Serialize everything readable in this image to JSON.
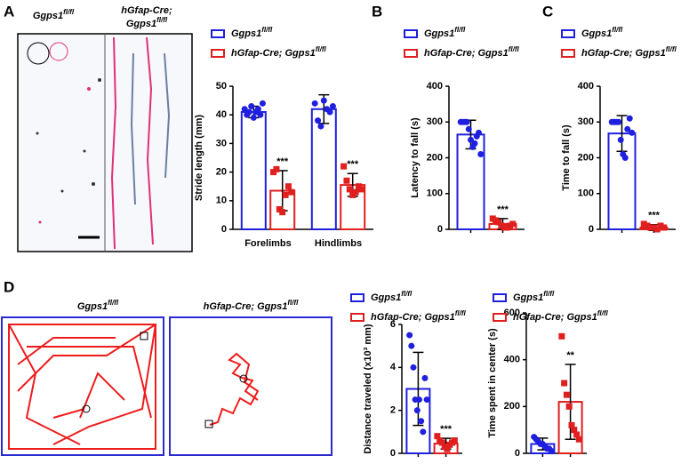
{
  "panel_labels": [
    "A",
    "B",
    "C",
    "D"
  ],
  "images": {
    "footprint": {
      "labels": [
        {
          "line1": "Ggps1",
          "sup": "fl/fl"
        },
        {
          "line0": "hGfap-Cre;",
          "line1": "Ggps1",
          "sup": "fl/fl"
        }
      ]
    },
    "open_field": {
      "labels": [
        {
          "text": "Ggps1",
          "sup": "fl/fl"
        },
        {
          "text": "hGfap-Cre; Ggps1",
          "sup": "fl/fl"
        }
      ]
    }
  },
  "chart_data": [
    {
      "type": "bar",
      "y_label": "Stride length (mm)",
      "categories": [
        "Forelimbs",
        "Hindlimbs"
      ],
      "ylim": [
        0,
        50
      ],
      "yticks": [
        0,
        10,
        20,
        30,
        40,
        50
      ],
      "series": [
        {
          "name": "Ggps1",
          "name_sup": "fl/fl",
          "color": "#1f1fe0",
          "marker": "circle",
          "values": [
            41,
            42
          ],
          "errors": [
            2,
            5
          ],
          "points": [
            [
              42,
              40,
              41,
              43,
              39,
              41,
              42,
              40,
              44
            ],
            [
              44,
              38,
              36,
              45,
              42,
              41,
              43
            ]
          ]
        },
        {
          "name": "hGfap-Cre; Ggps1",
          "name_sup": "fl/fl",
          "color": "#e01f1f",
          "marker": "square",
          "values": [
            13.5,
            15.5
          ],
          "errors": [
            7,
            4
          ],
          "points": [
            [
              20,
              21,
              7,
              6,
              12,
              15,
              13
            ],
            [
              22,
              17,
              14,
              12,
              13,
              15,
              14
            ]
          ],
          "significance": [
            "***",
            "***"
          ]
        }
      ]
    },
    {
      "type": "bar",
      "y_label": "Latency to fall (s)",
      "categories": [
        null
      ],
      "ylim": [
        0,
        400
      ],
      "yticks": [
        0,
        100,
        200,
        300,
        400
      ],
      "series": [
        {
          "name": "Ggps1",
          "name_sup": "fl/fl",
          "color": "#1f1fe0",
          "marker": "circle",
          "values": [
            265
          ],
          "errors": [
            40
          ],
          "points": [
            [
              300,
              300,
              300,
              300,
              280,
              250,
              230,
              240,
              260,
              270,
              210
            ]
          ]
        },
        {
          "name": "hGfap-Cre; Ggps1",
          "name_sup": "fl/fl",
          "color": "#e01f1f",
          "marker": "square",
          "values": [
            15
          ],
          "errors": [
            15
          ],
          "points": [
            [
              30,
              25,
              20,
              10,
              5,
              5,
              10,
              15
            ]
          ],
          "significance": [
            "***"
          ]
        }
      ]
    },
    {
      "type": "bar",
      "y_label": "Time to fall (s)",
      "categories": [
        null
      ],
      "ylim": [
        0,
        400
      ],
      "yticks": [
        0,
        100,
        200,
        300,
        400
      ],
      "series": [
        {
          "name": "Ggps1",
          "name_sup": "fl/fl",
          "color": "#1f1fe0",
          "marker": "circle",
          "values": [
            268
          ],
          "errors": [
            50
          ],
          "points": [
            [
              300,
              300,
              300,
              300,
              250,
              210,
              200,
              280,
              310,
              270
            ]
          ]
        },
        {
          "name": "hGfap-Cre; Ggps1",
          "name_sup": "fl/fl",
          "color": "#e01f1f",
          "marker": "square",
          "values": [
            5
          ],
          "errors": [
            8
          ],
          "points": [
            [
              15,
              10,
              5,
              5,
              0,
              10,
              5
            ]
          ],
          "significance": [
            "***"
          ]
        }
      ]
    },
    {
      "type": "bar",
      "y_label": "Distance traveled (x10³ mm)",
      "categories": [
        null
      ],
      "ylim": [
        0,
        6
      ],
      "yticks": [
        0,
        2,
        4,
        6
      ],
      "series": [
        {
          "name": "Ggps1",
          "name_sup": "fl/fl",
          "color": "#1f1fe0",
          "marker": "circle",
          "values": [
            3.0
          ],
          "errors": [
            1.7
          ],
          "points": [
            [
              5.5,
              5.0,
              4.0,
              2.5,
              2.0,
              2.5,
              1.5,
              1.0,
              3.5,
              2.5
            ]
          ]
        },
        {
          "name": "hGfap-Cre; Ggps1",
          "name_sup": "fl/fl",
          "color": "#e01f1f",
          "marker": "square",
          "values": [
            0.45
          ],
          "errors": [
            0.25
          ],
          "points": [
            [
              0.8,
              0.6,
              0.5,
              0.3,
              0.2,
              0.4,
              0.5,
              0.6
            ]
          ],
          "significance": [
            "***"
          ]
        }
      ]
    },
    {
      "type": "bar",
      "y_label": "Time spent in center (s)",
      "categories": [
        null
      ],
      "ylim": [
        0,
        600
      ],
      "yticks": [
        0,
        200,
        400,
        600
      ],
      "series": [
        {
          "name": "Ggps1",
          "name_sup": "fl/fl",
          "color": "#1f1fe0",
          "marker": "circle",
          "values": [
            40
          ],
          "errors": [
            25
          ],
          "points": [
            [
              70,
              60,
              50,
              40,
              40,
              30,
              20,
              20,
              10
            ]
          ]
        },
        {
          "name": "hGfap-Cre; Ggps1",
          "name_sup": "fl/fl",
          "color": "#e01f1f",
          "marker": "square",
          "values": [
            220
          ],
          "errors": [
            160
          ],
          "points": [
            [
              500,
              300,
              250,
              200,
              120,
              100,
              80,
              60
            ]
          ],
          "significance": [
            "**"
          ]
        }
      ]
    }
  ]
}
